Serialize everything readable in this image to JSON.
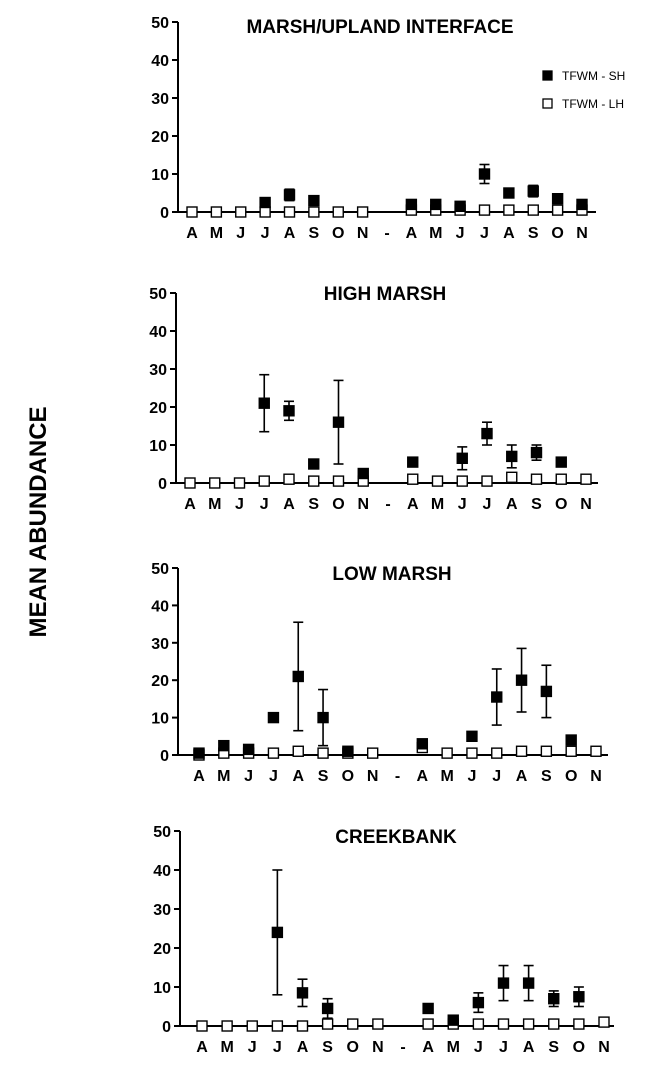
{
  "ylabel": "MEAN ABUNDANCE",
  "legend": {
    "items": [
      {
        "label": "TFWM - SH",
        "marker": "filled-square"
      },
      {
        "label": "TFWM - LH",
        "marker": "open-square"
      }
    ]
  },
  "chart_data": [
    {
      "type": "scatter",
      "title": "MARSH/UPLAND INTERFACE",
      "ylim": [
        0,
        50
      ],
      "yticks": [
        0,
        10,
        20,
        30,
        40,
        50
      ],
      "categories": [
        "A",
        "M",
        "J",
        "J",
        "A",
        "S",
        "O",
        "N",
        "-",
        "A",
        "M",
        "J",
        "J",
        "A",
        "S",
        "O",
        "N"
      ],
      "series": [
        {
          "name": "TFWM - SH",
          "values": [
            null,
            null,
            null,
            2.5,
            4.5,
            3,
            null,
            null,
            null,
            2,
            2,
            1.5,
            10,
            5,
            5.5,
            3.5,
            2
          ],
          "errors": [
            0,
            0,
            0,
            0,
            1.5,
            0,
            0,
            0,
            0,
            0,
            0,
            0,
            2.5,
            0,
            1.5,
            0,
            0
          ]
        },
        {
          "name": "TFWM - LH",
          "values": [
            0,
            0,
            0,
            0,
            0,
            0,
            0,
            0,
            null,
            0.5,
            0.5,
            0.5,
            0.5,
            0.5,
            0.5,
            0.5,
            0.5
          ],
          "errors": [
            0,
            0,
            0,
            0,
            0,
            0,
            0,
            0,
            0,
            0,
            0,
            0,
            0,
            0,
            0,
            0,
            0
          ]
        }
      ]
    },
    {
      "type": "scatter",
      "title": "HIGH MARSH",
      "ylim": [
        0,
        50
      ],
      "yticks": [
        0,
        10,
        20,
        30,
        40,
        50
      ],
      "categories": [
        "A",
        "M",
        "J",
        "J",
        "A",
        "S",
        "O",
        "N",
        "-",
        "A",
        "M",
        "J",
        "J",
        "A",
        "S",
        "O",
        "N"
      ],
      "series": [
        {
          "name": "TFWM - SH",
          "values": [
            null,
            null,
            null,
            21,
            19,
            5,
            16,
            2.5,
            null,
            5.5,
            null,
            6.5,
            13,
            7,
            8,
            5.5,
            null
          ],
          "errors": [
            0,
            0,
            0,
            7.5,
            2.5,
            0,
            11,
            0,
            0,
            0,
            0,
            3,
            3,
            3,
            2,
            0,
            0
          ]
        },
        {
          "name": "TFWM - LH",
          "values": [
            0,
            0,
            0,
            0.5,
            1,
            0.5,
            0.5,
            0.5,
            null,
            1,
            0.5,
            0.5,
            0.5,
            1.5,
            1,
            1,
            1
          ],
          "errors": [
            0,
            0,
            0,
            0,
            0,
            0,
            0,
            0,
            0,
            0,
            0,
            0,
            0,
            0,
            0,
            0,
            0
          ]
        }
      ]
    },
    {
      "type": "scatter",
      "title": "LOW MARSH",
      "ylim": [
        0,
        50
      ],
      "yticks": [
        0,
        10,
        20,
        30,
        40,
        50
      ],
      "categories": [
        "A",
        "M",
        "J",
        "J",
        "A",
        "S",
        "O",
        "N",
        "-",
        "A",
        "M",
        "J",
        "J",
        "A",
        "S",
        "O",
        "N"
      ],
      "series": [
        {
          "name": "TFWM - SH",
          "values": [
            0.5,
            2.5,
            1.5,
            10,
            21,
            10,
            1,
            null,
            null,
            3,
            null,
            5,
            15.5,
            20,
            17,
            4,
            null
          ],
          "errors": [
            0,
            0,
            0,
            0,
            14.5,
            7.5,
            0,
            0,
            0,
            0,
            0,
            0,
            7.5,
            8.5,
            7,
            0,
            0
          ]
        },
        {
          "name": "TFWM - LH",
          "values": [
            0,
            0.5,
            0.5,
            0.5,
            1,
            0.5,
            0.5,
            0.5,
            null,
            2,
            0.5,
            0.5,
            0.5,
            1,
            1,
            1,
            1
          ],
          "errors": [
            0,
            0,
            0,
            0,
            0,
            0,
            0,
            0,
            0,
            0,
            0,
            0,
            0,
            0,
            0,
            0,
            0
          ]
        }
      ]
    },
    {
      "type": "scatter",
      "title": "CREEKBANK",
      "ylim": [
        0,
        50
      ],
      "yticks": [
        0,
        10,
        20,
        30,
        40,
        50
      ],
      "categories": [
        "A",
        "M",
        "J",
        "J",
        "A",
        "S",
        "O",
        "N",
        "-",
        "A",
        "M",
        "J",
        "J",
        "A",
        "S",
        "O",
        "N"
      ],
      "series": [
        {
          "name": "TFWM - SH",
          "values": [
            null,
            null,
            null,
            24,
            8.5,
            4.5,
            null,
            null,
            null,
            4.5,
            1.5,
            6,
            11,
            11,
            7,
            7.5,
            null
          ],
          "errors": [
            0,
            0,
            0,
            16,
            3.5,
            2.5,
            0,
            0,
            0,
            0,
            0,
            2.5,
            4.5,
            4.5,
            2,
            2.5,
            0
          ]
        },
        {
          "name": "TFWM - LH",
          "values": [
            0,
            0,
            0,
            0,
            0,
            0.5,
            0.5,
            0.5,
            null,
            0.5,
            0.5,
            0.5,
            0.5,
            0.5,
            0.5,
            0.5,
            1
          ],
          "errors": [
            0,
            0,
            0,
            0,
            0,
            0,
            0,
            0,
            0,
            0,
            0,
            0,
            0,
            0,
            0,
            0,
            0
          ]
        }
      ]
    }
  ]
}
